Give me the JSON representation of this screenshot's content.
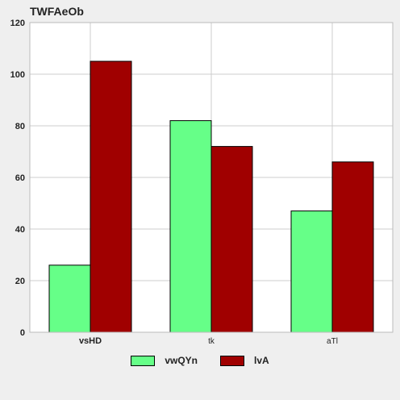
{
  "chart_data": {
    "type": "bar",
    "title": "TWFAeOb",
    "categories": [
      "vsHD",
      "tk",
      "aTl"
    ],
    "series": [
      {
        "name": "vwQYn",
        "values": [
          26,
          82,
          47
        ],
        "color": "#66ff88"
      },
      {
        "name": "lvA",
        "values": [
          105,
          72,
          66
        ],
        "color": "#a00000"
      }
    ],
    "ylim": [
      0,
      120
    ],
    "yticks": [
      0,
      20,
      40,
      60,
      80,
      100,
      120
    ],
    "grid": true,
    "legend_position": "bottom-center",
    "bold_categories": [
      "vsHD"
    ]
  }
}
